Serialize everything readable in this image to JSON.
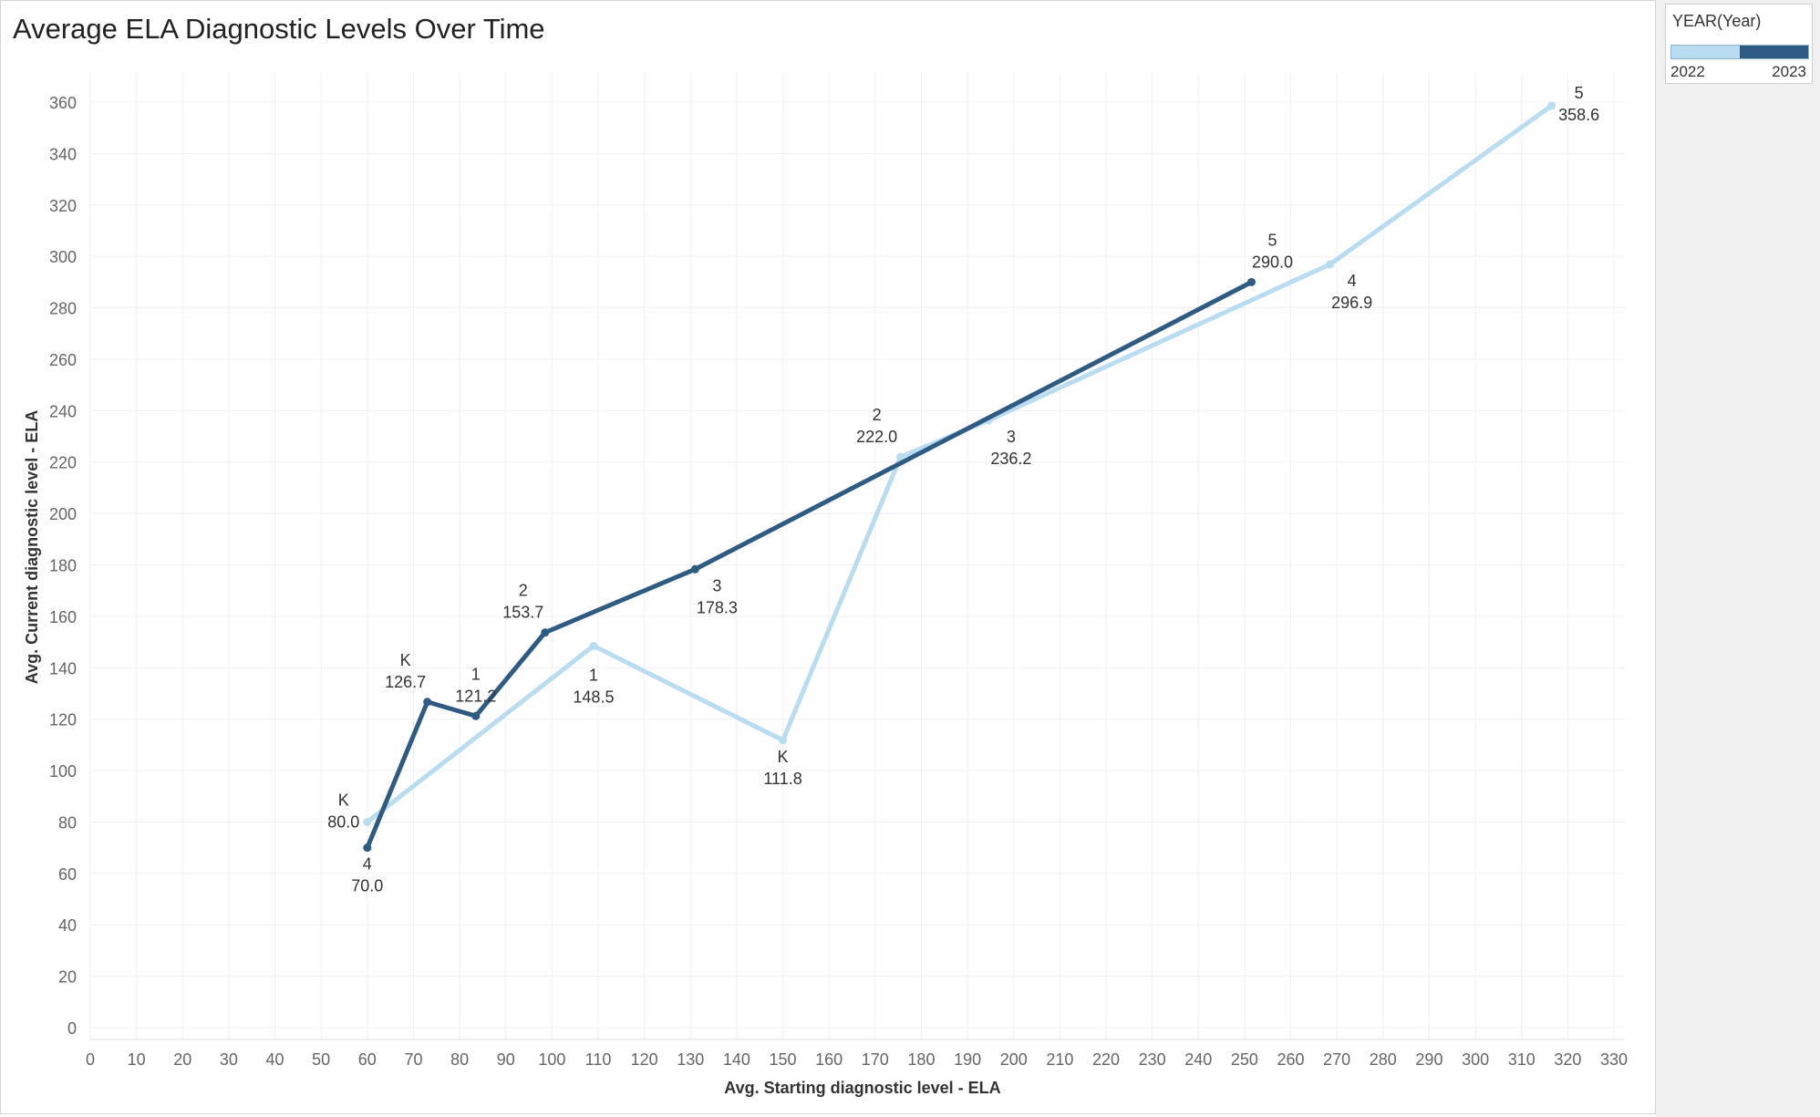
{
  "chart_data": {
    "type": "line",
    "title": "Average ELA Diagnostic Levels Over Time",
    "xlabel": "Avg. Starting diagnostic level - ELA",
    "ylabel": "Avg. Current diagnostic level - ELA",
    "xlim": [
      0,
      330
    ],
    "ylim": [
      0,
      360
    ],
    "x_ticks": [
      0,
      10,
      20,
      30,
      40,
      50,
      60,
      70,
      80,
      90,
      100,
      110,
      120,
      130,
      140,
      150,
      160,
      170,
      180,
      190,
      200,
      210,
      220,
      230,
      240,
      250,
      260,
      270,
      280,
      290,
      300,
      310,
      320,
      330
    ],
    "y_ticks": [
      0,
      20,
      40,
      60,
      80,
      100,
      120,
      140,
      160,
      180,
      200,
      220,
      240,
      260,
      280,
      300,
      320,
      340,
      360
    ],
    "grid": true,
    "legend": {
      "title": "YEAR(Year)",
      "placement": "top-right",
      "labels": [
        "2022",
        "2023"
      ]
    },
    "series": [
      {
        "name": "2022",
        "color": "#b9dcf0",
        "points": [
          {
            "x": 60,
            "y": 80.0,
            "grade": "K",
            "value": "80.0"
          },
          {
            "x": 109,
            "y": 148.5,
            "grade": "1",
            "value": "148.5"
          },
          {
            "x": 150,
            "y": 111.8,
            "grade": "K",
            "value": "111.8"
          },
          {
            "x": 175.5,
            "y": 222.0,
            "grade": "2",
            "value": "222.0"
          },
          {
            "x": 194.5,
            "y": 236.2,
            "grade": "3",
            "value": "236.2"
          },
          {
            "x": 268.5,
            "y": 296.9,
            "grade": "4",
            "value": "296.9"
          },
          {
            "x": 316.5,
            "y": 358.6,
            "grade": "5",
            "value": "358.6"
          }
        ]
      },
      {
        "name": "2023",
        "color": "#2f5a82",
        "points": [
          {
            "x": 60,
            "y": 70.0,
            "grade": "4",
            "value": "70.0"
          },
          {
            "x": 73,
            "y": 126.7,
            "grade": "K",
            "value": "126.7"
          },
          {
            "x": 83.5,
            "y": 121.2,
            "grade": "1",
            "value": "121.2"
          },
          {
            "x": 98.5,
            "y": 153.7,
            "grade": "2",
            "value": "153.7"
          },
          {
            "x": 131,
            "y": 178.3,
            "grade": "3",
            "value": "178.3"
          },
          {
            "x": 251.5,
            "y": 290.0,
            "grade": "5",
            "value": "290.0"
          }
        ]
      }
    ]
  }
}
